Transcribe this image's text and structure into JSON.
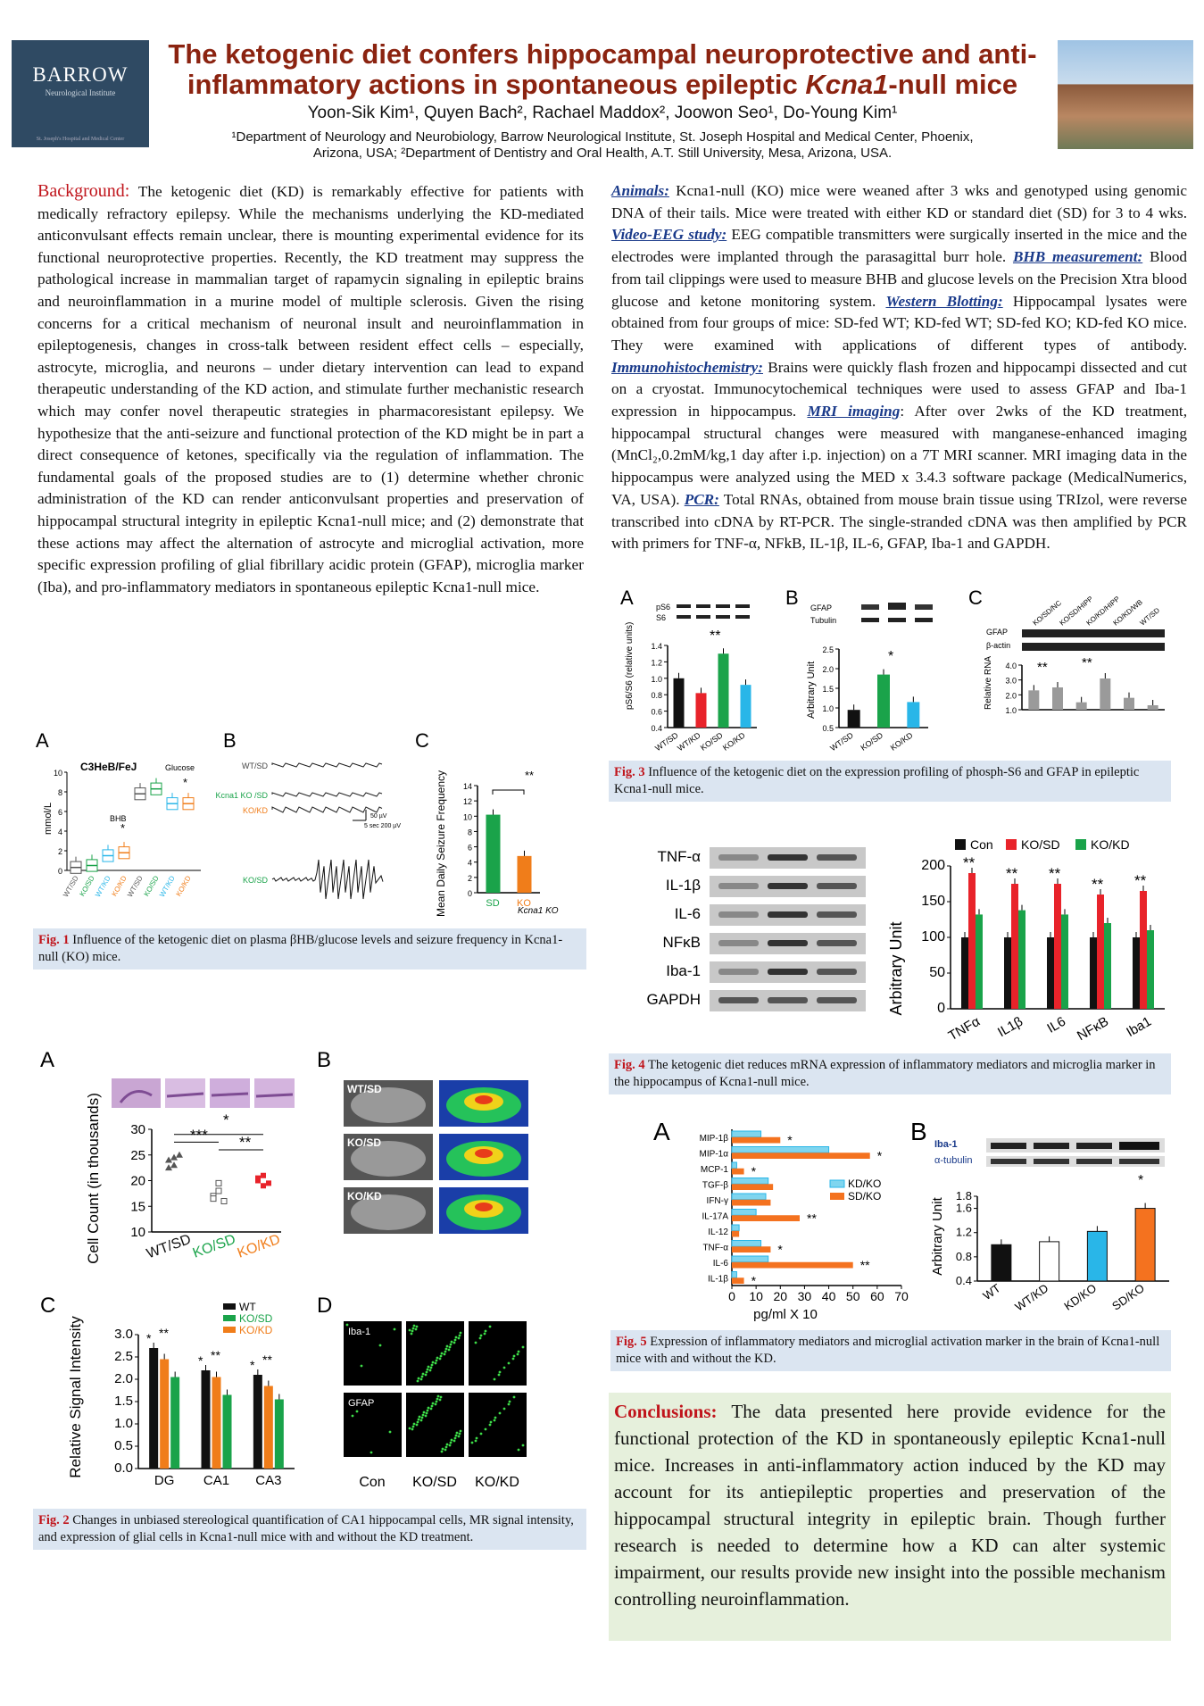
{
  "header": {
    "logo_text": "BARROW",
    "logo_sub": "Neurological Institute",
    "logo_foot": "St. Joseph's Hospital and Medical Center",
    "title_line1": "The ketogenic diet confers hippocampal neuroprotective and anti-",
    "title_line2a": "inflammatory actions in spontaneous epileptic ",
    "title_line2b": "Kcna1",
    "title_line2c": "-null mice",
    "authors": "Yoon-Sik Kim¹, Quyen Bach², Rachael Maddox², Joowon Seo¹, Do-Young Kim¹",
    "affil1": "¹Department of Neurology and Neurobiology, Barrow Neurological Institute, St. Joseph Hospital and Medical Center, Phoenix,",
    "affil2": "Arizona, USA; ²Department of Dentistry and Oral Health, A.T. Still University, Mesa, Arizona, USA."
  },
  "background": {
    "heading": "Background:",
    "text": " The ketogenic diet (KD) is remarkably effective for patients with medically refractory epilepsy. While the mechanisms underlying the KD-mediated anticonvulsant effects remain unclear, there is mounting experimental evidence for its functional neuroprotective properties. Recently, the KD treatment may suppress the pathological increase in mammalian target of rapamycin signaling in epileptic brains and neuroinflammation in a murine model of multiple sclerosis. Given the rising concerns for a critical mechanism of neuronal insult and neuroinflammation in epileptogenesis, changes in cross-talk between resident effect cells – especially, astrocyte, microglia, and neurons – under dietary intervention can lead to expand therapeutic understanding of the KD action, and stimulate further mechanistic research which may confer novel therapeutic strategies in pharmacoresistant epilepsy. We hypothesize that the anti-seizure and functional protection of the KD might be in part a direct consequence of ketones, specifically via the regulation of inflammation. The fundamental goals of the proposed studies are to (1) determine whether chronic administration of the KD can render anticonvulsant properties and preservation of hippocampal structural integrity in epileptic Kcna1-null mice; and (2) demonstrate that these actions may affect the alternation of astrocyte and microglial activation, more specific expression profiling of glial fibrillary acidic protein (GFAP), microglia marker (Iba), and pro-inflammatory mediators in spontaneous epileptic Kcna1-null mice."
  },
  "methods": [
    {
      "label": "Animals:",
      "text": " Kcna1-null (KO) mice were weaned after 3 wks and genotyped using genomic DNA of their tails. Mice were treated with either KD or standard diet (SD) for 3 to 4 wks. "
    },
    {
      "label": "Video-EEG study:",
      "text": " EEG compatible transmitters were surgically inserted in the mice and the electrodes were implanted through the parasagittal burr hole. "
    },
    {
      "label": "BHB measurement:",
      "text": " Blood from tail clippings were used to measure BHB and glucose levels on the Precision Xtra blood glucose and ketone monitoring system. "
    },
    {
      "label": "Western Blotting:",
      "text": " Hippocampal lysates were obtained from four groups of mice: SD-fed WT; KD-fed WT; SD-fed KO; KD-fed KO mice. They were examined with applications of different types of antibody. "
    },
    {
      "label": "Immunohistochemistry:",
      "text": " Brains were quickly flash frozen and hippocampi dissected and cut on a cryostat. Immunocytochemical techniques were used to assess GFAP and Iba-1 expression in hippocampus. "
    },
    {
      "label": "MRI imaging",
      "text": ": After over 2wks of the KD treatment, hippocampal structural changes were measured with manganese-enhanced imaging (MnCl₂,0.2mM/kg,1 day after i.p. injection) on a 7T MRI scanner. MRI imaging data in the hippocampus were analyzed using the MED x 3.4.3 software package (MedicalNumerics, VA, USA). "
    },
    {
      "label": "PCR:",
      "text": " Total RNAs, obtained from mouse brain tissue using TRIzol, were reverse transcribed into cDNA by RT-PCR. The single-stranded cDNA was then amplified by PCR with primers for TNF-α, NFkB, IL-1β, IL-6, GFAP, Iba-1 and GAPDH."
    }
  ],
  "captions": {
    "fig1_label": "Fig. 1",
    "fig1": " Influence of the ketogenic diet on plasma βHB/glucose levels and seizure frequency in Kcna1-null (KO) mice.",
    "fig2_label": "Fig. 2",
    "fig2": " Changes in unbiased stereological quantification of CA1 hippocampal cells, MR signal intensity, and expression of glial cells in Kcna1-null mice with and without the KD treatment.",
    "fig3_label": "Fig. 3",
    "fig3": " Influence of the ketogenic diet on the expression profiling of phosph-S6 and GFAP in epileptic Kcna1-null mice.",
    "fig4_label": "Fig. 4",
    "fig4": " The ketogenic diet reduces mRNA expression of inflammatory mediators and microglia marker in the hippocampus of Kcna1-null mice.",
    "fig5_label": "Fig. 5",
    "fig5": " Expression of inflammatory mediators and microglial activation marker in the brain of Kcna1-null mice with and without the KD."
  },
  "conclusions": {
    "heading": "Conclusions:",
    "text": " The data presented here provide evidence for the functional protection of the KD in spontaneously epileptic Kcna1-null mice. Increases in anti-inflammatory action induced by the KD may account for its antiepileptic properties and preservation of the hippocampal structural integrity in epileptic brain. Though further research is needed to determine how a KD can alter systemic impairment, our results provide new insight into the possible mechanism controlling neuroinflammation."
  },
  "colors": {
    "sd": "#e8232a",
    "kd": "#f07d1a",
    "wt": "#111111",
    "green": "#1aa34a",
    "cyan": "#29b6e8",
    "ko_kd": "#f4721f"
  },
  "fig1": {
    "panelA": "A",
    "panelB": "B",
    "panelC": "C",
    "a_title": "C3HeB/FeJ",
    "a_glucose": "Glucose",
    "a_bhb": "BHB",
    "a_ylabel": "mmol/L",
    "a_star": "*",
    "a_yticks": [
      "0",
      "2",
      "4",
      "6",
      "8",
      "10"
    ],
    "a_groups": [
      "WT/SD",
      "KO/SD",
      "WT/KD",
      "KO/KD",
      "WT/SD",
      "KO/SD",
      "WT/KD",
      "KO/KD"
    ],
    "b_traces": [
      "WT/SD",
      "Kcna1 KO /SD",
      "KO/KD",
      "KO/SD"
    ],
    "b_scale1": "50 µV",
    "b_scale2": "5 sec 200 µV",
    "c_ylabel": "Mean Daily Seizure Frequency",
    "c_yticks": [
      "0",
      "2",
      "4",
      "6",
      "8",
      "10",
      "12",
      "14"
    ],
    "c_cats": [
      "SD",
      "KO"
    ],
    "c_xlabel": "Kcna1 KO",
    "c_star": "**",
    "chart_data": {
      "type": "bar",
      "categories": [
        "SD",
        "KO"
      ],
      "values": [
        10.2,
        4.8
      ],
      "ylim": [
        0,
        14
      ],
      "ylabel": "Mean Daily Seizure Frequency",
      "xlabel": "Kcna1 KO"
    }
  },
  "fig2": {
    "panelA": "A",
    "panelB": "B",
    "panelC": "C",
    "panelD": "D",
    "a_ylabel": "Cell Count (in thousands)",
    "a_yticks": [
      "10",
      "15",
      "20",
      "25",
      "30"
    ],
    "a_cats": [
      "WT/SD",
      "KO/SD",
      "KO/KD"
    ],
    "a_stars": [
      "***",
      "*",
      "**"
    ],
    "b_labels": [
      "WT/SD",
      "KO/SD",
      "KO/KD"
    ],
    "c_ylabel": "Relative Signal Intensity",
    "c_yticks": [
      "0.0",
      "0.5",
      "1.0",
      "1.5",
      "2.0",
      "2.5",
      "3.0"
    ],
    "c_legend": [
      "WT",
      "KO/SD",
      "KO/KD"
    ],
    "chart_data": {
      "type": "bar",
      "categories": [
        "DG",
        "CA1",
        "CA3"
      ],
      "series": [
        {
          "name": "WT",
          "values": [
            2.7,
            2.2,
            2.1
          ]
        },
        {
          "name": "KO/SD",
          "values": [
            2.45,
            2.05,
            1.85
          ]
        },
        {
          "name": "KO/KD",
          "values": [
            2.05,
            1.65,
            1.55
          ]
        }
      ],
      "ylim": [
        0,
        3.0
      ],
      "ylabel": "Relative Signal Intensity"
    },
    "d_labels": [
      "Iba-1",
      "GFAP"
    ],
    "d_cols": [
      "Con",
      "KO/SD",
      "KO/KD"
    ]
  },
  "fig3": {
    "panelA": "A",
    "panelB": "B",
    "panelC": "C",
    "a_blots": [
      "pS6",
      "S6"
    ],
    "a_ylabel": "pS6/S6 (relative units)",
    "a_yticks": [
      "0.4",
      "0.6",
      "0.8",
      "1.0",
      "1.2",
      "1.4"
    ],
    "a_cats": [
      "WT/SD",
      "WT/KD",
      "KO/SD",
      "KO/KD"
    ],
    "a_star": "**",
    "a_chart": {
      "type": "bar",
      "categories": [
        "WT/SD",
        "WT/KD",
        "KO/SD",
        "KO/KD"
      ],
      "values": [
        1.0,
        0.82,
        1.3,
        0.92
      ],
      "ylim": [
        0.4,
        1.4
      ]
    },
    "b_blots": [
      "GFAP",
      "Tubulin"
    ],
    "b_ylabel": "Arbitrary Unit",
    "b_yticks": [
      "0.5",
      "1.0",
      "1.5",
      "2.0",
      "2.5"
    ],
    "b_cats": [
      "WT/SD",
      "KO/SD",
      "KO/KD"
    ],
    "b_star": "*",
    "b_chart": {
      "type": "bar",
      "categories": [
        "WT/SD",
        "KO/SD",
        "KO/KD"
      ],
      "values": [
        0.95,
        1.85,
        1.15
      ],
      "ylim": [
        0.5,
        2.5
      ]
    },
    "c_cols": [
      "KO/SD/NC",
      "KO/SD/HIPP",
      "KO/KD/HIPP",
      "KO/KD/WB",
      "WT/SD"
    ],
    "c_blots": [
      "GFAP",
      "β-actin"
    ],
    "c_ylabel": "Relative RNA",
    "c_yticks": [
      "1.0",
      "2.0",
      "3.0",
      "4.0"
    ],
    "c_stars": [
      "**",
      "**"
    ],
    "c_chart": {
      "type": "bar",
      "values": [
        2.3,
        2.5,
        1.5,
        3.1,
        1.8,
        1.3
      ],
      "ylim": [
        1.0,
        4.0
      ]
    }
  },
  "fig4": {
    "rows": [
      "TNF-α",
      "IL-1β",
      "IL-6",
      "NFκB",
      "Iba-1",
      "GAPDH"
    ],
    "legend": [
      "Con",
      "KO/SD",
      "KO/KD"
    ],
    "ylabel": "Arbitrary Unit",
    "yticks": [
      "0",
      "50",
      "100",
      "150",
      "200"
    ],
    "stars": "**",
    "chart_data": {
      "type": "bar",
      "categories": [
        "TNFα",
        "IL1β",
        "IL6",
        "NFκB",
        "Iba1"
      ],
      "series": [
        {
          "name": "Con",
          "values": [
            100,
            100,
            100,
            100,
            100
          ]
        },
        {
          "name": "KO/SD",
          "values": [
            190,
            175,
            175,
            160,
            165
          ]
        },
        {
          "name": "KO/KD",
          "values": [
            132,
            138,
            132,
            120,
            110
          ]
        }
      ],
      "ylim": [
        0,
        200
      ],
      "ylabel": "Arbitrary Unit"
    }
  },
  "fig5": {
    "panelA": "A",
    "panelB": "B",
    "a_cats": [
      "MIP-1β",
      "MIP-1α",
      "MCP-1",
      "TGF-β",
      "IFN-γ",
      "IL-17A",
      "IL-12",
      "TNF-α",
      "IL-6",
      "IL-1β"
    ],
    "a_legend": [
      "KD/KO",
      "SD/KO"
    ],
    "a_xticks": [
      "0",
      "10",
      "20",
      "30",
      "40",
      "50",
      "60",
      "70"
    ],
    "a_xlabel": "pg/ml X 10",
    "a_stars": [
      "*",
      "*",
      "*",
      "**",
      "*",
      "**",
      "*"
    ],
    "a_chart": {
      "type": "bar",
      "categories": [
        "MIP-1β",
        "MIP-1α",
        "MCP-1",
        "TGF-β",
        "IFN-γ",
        "IL-17A",
        "IL-12",
        "TNF-α",
        "IL-6",
        "IL-1β"
      ],
      "series": [
        {
          "name": "KD/KO",
          "values": [
            12,
            40,
            2,
            15,
            14,
            10,
            3,
            12,
            15,
            2
          ]
        },
        {
          "name": "SD/KO",
          "values": [
            20,
            57,
            5,
            17,
            16,
            28,
            3,
            16,
            50,
            5
          ]
        }
      ],
      "xlim": [
        0,
        70
      ],
      "xlabel": "pg/ml X 10"
    },
    "b_blots": [
      "Iba-1",
      "α-tubulin"
    ],
    "b_ylabel": "Arbitrary Unit",
    "b_yticks": [
      "0.4",
      "0.8",
      "1.2",
      "1.6",
      "1.8"
    ],
    "b_cats": [
      "WT",
      "WT/KD",
      "KD/KO",
      "SD/KO"
    ],
    "b_star": "*",
    "b_chart": {
      "type": "bar",
      "categories": [
        "WT",
        "WT/KD",
        "KD/KO",
        "SD/KO"
      ],
      "values": [
        1.0,
        1.05,
        1.22,
        1.6
      ],
      "ylim": [
        0.4,
        1.8
      ]
    }
  }
}
